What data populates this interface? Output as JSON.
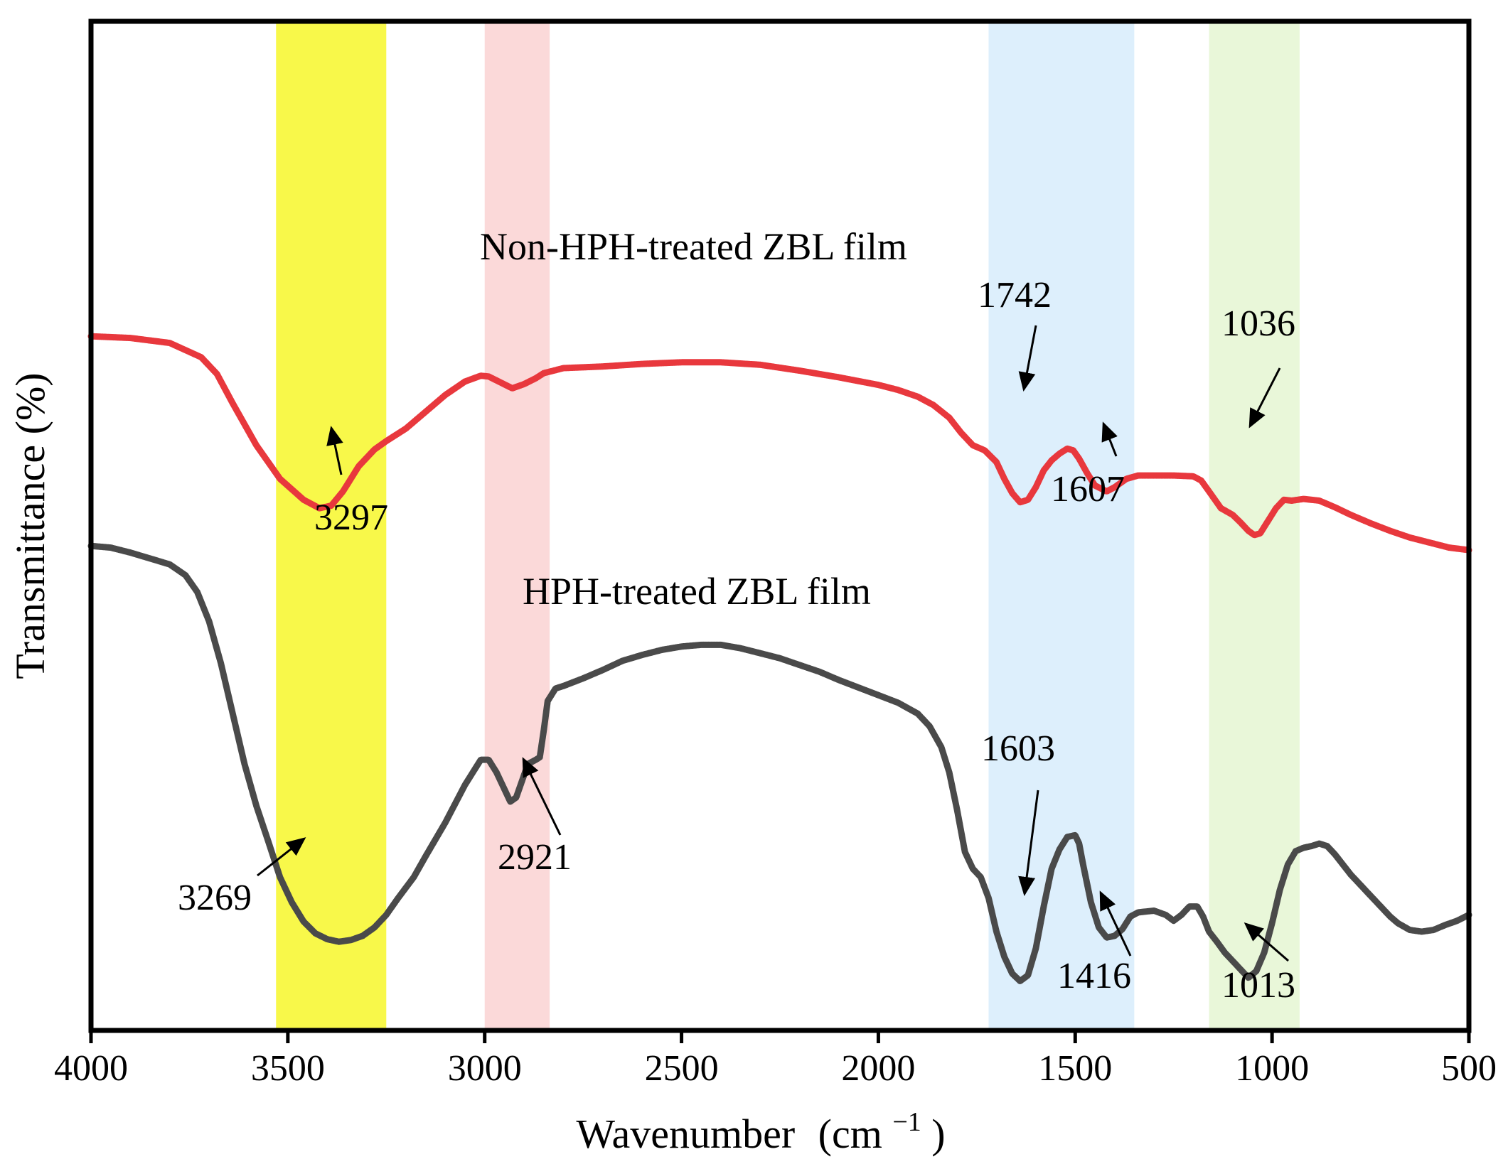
{
  "chart_data": {
    "type": "line",
    "title": "",
    "xlabel": "Wavenumber",
    "xlabel_unit": "(cm",
    "xlabel_unit_exp": "−1",
    "xlabel_unit_close": ")",
    "ylabel": "Transmittance (%)",
    "xlim": [
      4000,
      500
    ],
    "x_reversed": true,
    "ylim": [
      0,
      100
    ],
    "x_ticks": [
      "4000",
      "3500",
      "3000",
      "2500",
      "2000",
      "1500",
      "1000",
      "500"
    ],
    "y_ticks_shown": false,
    "grid": false,
    "bands": [
      {
        "from": 3530,
        "to": 3250,
        "color": "#f8f84a"
      },
      {
        "from": 3000,
        "to": 2835,
        "color": "#fbd9d9"
      },
      {
        "from": 1720,
        "to": 1350,
        "color": "#ddeffc"
      },
      {
        "from": 1160,
        "to": 930,
        "color": "#e9f7d9"
      }
    ],
    "series": [
      {
        "name": "Non-HPH-treated ZBL film",
        "color": "#e8383d",
        "points": [
          [
            4000,
            76
          ],
          [
            3900,
            75.8
          ],
          [
            3800,
            75.2
          ],
          [
            3720,
            73.5
          ],
          [
            3680,
            71.5
          ],
          [
            3640,
            68
          ],
          [
            3580,
            63
          ],
          [
            3520,
            59
          ],
          [
            3460,
            56.5
          ],
          [
            3420,
            55.5
          ],
          [
            3390,
            55.8
          ],
          [
            3360,
            57.5
          ],
          [
            3320,
            60.5
          ],
          [
            3280,
            62.5
          ],
          [
            3250,
            63.5
          ],
          [
            3200,
            65
          ],
          [
            3150,
            67
          ],
          [
            3100,
            69
          ],
          [
            3050,
            70.6
          ],
          [
            3010,
            71.3
          ],
          [
            2990,
            71.2
          ],
          [
            2960,
            70.5
          ],
          [
            2930,
            69.8
          ],
          [
            2900,
            70.3
          ],
          [
            2870,
            71
          ],
          [
            2850,
            71.6
          ],
          [
            2800,
            72.2
          ],
          [
            2700,
            72.4
          ],
          [
            2600,
            72.7
          ],
          [
            2500,
            72.9
          ],
          [
            2400,
            72.9
          ],
          [
            2300,
            72.6
          ],
          [
            2200,
            71.9
          ],
          [
            2100,
            71.1
          ],
          [
            2000,
            70.2
          ],
          [
            1950,
            69.6
          ],
          [
            1900,
            68.8
          ],
          [
            1860,
            67.8
          ],
          [
            1820,
            66.3
          ],
          [
            1790,
            64.5
          ],
          [
            1760,
            63
          ],
          [
            1730,
            62.4
          ],
          [
            1700,
            61
          ],
          [
            1680,
            59
          ],
          [
            1660,
            57.3
          ],
          [
            1640,
            56.2
          ],
          [
            1620,
            56.5
          ],
          [
            1600,
            58
          ],
          [
            1580,
            60
          ],
          [
            1560,
            61.2
          ],
          [
            1540,
            62
          ],
          [
            1520,
            62.6
          ],
          [
            1505,
            62.4
          ],
          [
            1490,
            61.4
          ],
          [
            1470,
            59.7
          ],
          [
            1450,
            58.2
          ],
          [
            1420,
            57.5
          ],
          [
            1400,
            58
          ],
          [
            1370,
            59
          ],
          [
            1340,
            59.4
          ],
          [
            1300,
            59.4
          ],
          [
            1250,
            59.4
          ],
          [
            1200,
            59.3
          ],
          [
            1180,
            58.8
          ],
          [
            1160,
            57.5
          ],
          [
            1130,
            55.5
          ],
          [
            1100,
            54.7
          ],
          [
            1080,
            53.8
          ],
          [
            1060,
            52.8
          ],
          [
            1045,
            52.3
          ],
          [
            1030,
            52.5
          ],
          [
            1010,
            54
          ],
          [
            990,
            55.5
          ],
          [
            970,
            56.5
          ],
          [
            950,
            56.4
          ],
          [
            920,
            56.6
          ],
          [
            880,
            56.4
          ],
          [
            840,
            55.6
          ],
          [
            800,
            54.7
          ],
          [
            750,
            53.7
          ],
          [
            700,
            52.8
          ],
          [
            650,
            52
          ],
          [
            600,
            51.4
          ],
          [
            550,
            50.8
          ],
          [
            500,
            50.5
          ]
        ]
      },
      {
        "name": "HPH-treated ZBL film",
        "color": "#4a4a4a",
        "points": [
          [
            4000,
            51
          ],
          [
            3950,
            50.8
          ],
          [
            3900,
            50.2
          ],
          [
            3850,
            49.5
          ],
          [
            3800,
            48.8
          ],
          [
            3760,
            47.5
          ],
          [
            3730,
            45.5
          ],
          [
            3700,
            42
          ],
          [
            3670,
            37
          ],
          [
            3640,
            31
          ],
          [
            3610,
            25
          ],
          [
            3580,
            20
          ],
          [
            3550,
            15.8
          ],
          [
            3520,
            11.5
          ],
          [
            3490,
            8.5
          ],
          [
            3460,
            6.2
          ],
          [
            3430,
            4.8
          ],
          [
            3400,
            4.1
          ],
          [
            3370,
            3.8
          ],
          [
            3340,
            4
          ],
          [
            3310,
            4.5
          ],
          [
            3280,
            5.5
          ],
          [
            3250,
            7
          ],
          [
            3220,
            9
          ],
          [
            3180,
            11.5
          ],
          [
            3150,
            14
          ],
          [
            3100,
            18
          ],
          [
            3050,
            22.5
          ],
          [
            3010,
            25.5
          ],
          [
            2990,
            25.5
          ],
          [
            2970,
            24
          ],
          [
            2950,
            22
          ],
          [
            2935,
            20.5
          ],
          [
            2920,
            21
          ],
          [
            2905,
            23
          ],
          [
            2890,
            25
          ],
          [
            2870,
            25.5
          ],
          [
            2860,
            25.8
          ],
          [
            2850,
            29
          ],
          [
            2840,
            32.5
          ],
          [
            2820,
            34
          ],
          [
            2800,
            34.3
          ],
          [
            2750,
            35.2
          ],
          [
            2700,
            36.2
          ],
          [
            2650,
            37.3
          ],
          [
            2600,
            38
          ],
          [
            2550,
            38.6
          ],
          [
            2500,
            39
          ],
          [
            2450,
            39.2
          ],
          [
            2400,
            39.2
          ],
          [
            2350,
            38.8
          ],
          [
            2300,
            38.2
          ],
          [
            2250,
            37.6
          ],
          [
            2200,
            36.8
          ],
          [
            2150,
            36
          ],
          [
            2100,
            35
          ],
          [
            2050,
            34.1
          ],
          [
            2000,
            33.2
          ],
          [
            1950,
            32.3
          ],
          [
            1900,
            31
          ],
          [
            1870,
            29.5
          ],
          [
            1840,
            27
          ],
          [
            1820,
            24
          ],
          [
            1800,
            19.5
          ],
          [
            1780,
            14.5
          ],
          [
            1760,
            12.5
          ],
          [
            1740,
            11.5
          ],
          [
            1720,
            9
          ],
          [
            1700,
            5
          ],
          [
            1680,
            2
          ],
          [
            1660,
            0
          ],
          [
            1640,
            -0.9
          ],
          [
            1620,
            -0.2
          ],
          [
            1600,
            3
          ],
          [
            1580,
            8
          ],
          [
            1560,
            12.5
          ],
          [
            1540,
            14.8
          ],
          [
            1520,
            16.3
          ],
          [
            1500,
            16.5
          ],
          [
            1490,
            15.5
          ],
          [
            1480,
            13
          ],
          [
            1460,
            8.5
          ],
          [
            1440,
            5.5
          ],
          [
            1420,
            4.3
          ],
          [
            1400,
            4.5
          ],
          [
            1380,
            5.3
          ],
          [
            1360,
            6.8
          ],
          [
            1340,
            7.3
          ],
          [
            1300,
            7.5
          ],
          [
            1270,
            7
          ],
          [
            1250,
            6.3
          ],
          [
            1230,
            7
          ],
          [
            1210,
            8
          ],
          [
            1190,
            8
          ],
          [
            1175,
            6.8
          ],
          [
            1160,
            5
          ],
          [
            1140,
            3.8
          ],
          [
            1120,
            2.5
          ],
          [
            1100,
            1.5
          ],
          [
            1080,
            0.5
          ],
          [
            1060,
            -0.5
          ],
          [
            1040,
            0.3
          ],
          [
            1020,
            2.5
          ],
          [
            1000,
            6
          ],
          [
            980,
            10
          ],
          [
            960,
            13
          ],
          [
            940,
            14.6
          ],
          [
            920,
            15
          ],
          [
            900,
            15.2
          ],
          [
            880,
            15.5
          ],
          [
            860,
            15.2
          ],
          [
            840,
            14.2
          ],
          [
            820,
            13
          ],
          [
            800,
            11.8
          ],
          [
            780,
            10.8
          ],
          [
            760,
            9.8
          ],
          [
            740,
            8.8
          ],
          [
            720,
            7.8
          ],
          [
            700,
            6.8
          ],
          [
            680,
            6
          ],
          [
            650,
            5.2
          ],
          [
            620,
            5
          ],
          [
            590,
            5.2
          ],
          [
            560,
            5.8
          ],
          [
            530,
            6.3
          ],
          [
            500,
            7
          ]
        ]
      }
    ],
    "labels": {
      "non_hph": "Non-HPH-treated ZBL film",
      "hph": "HPH-treated ZBL film"
    },
    "annotations": [
      {
        "text": "3297",
        "series": "non_hph",
        "x": 3420
      },
      {
        "text": "1742",
        "series": "non_hph",
        "x": 1630
      },
      {
        "text": "1607",
        "series": "non_hph",
        "x": 1430
      },
      {
        "text": "1036",
        "series": "non_hph",
        "x": 1045
      },
      {
        "text": "3269",
        "series": "hph",
        "x": 3370
      },
      {
        "text": "2921",
        "series": "hph",
        "x": 2930
      },
      {
        "text": "1603",
        "series": "hph",
        "x": 1640
      },
      {
        "text": "1416",
        "series": "hph",
        "x": 1420
      },
      {
        "text": "1013",
        "series": "hph",
        "x": 1060
      }
    ]
  }
}
